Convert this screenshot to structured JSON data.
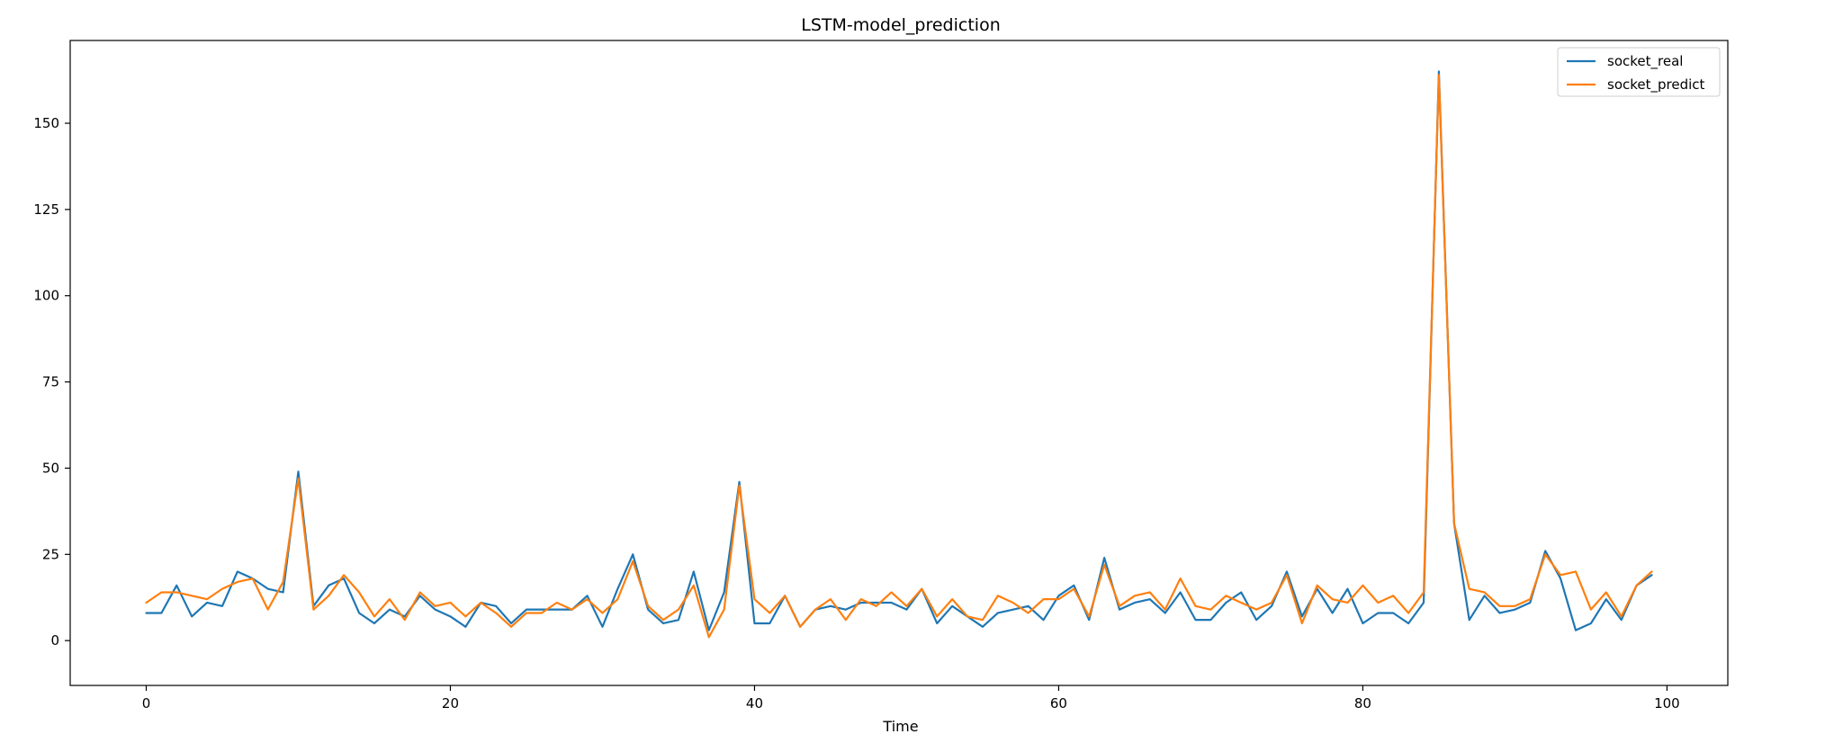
{
  "chart_data": {
    "type": "line",
    "title": "LSTM-model_prediction",
    "xlabel": "Time",
    "ylabel": "",
    "xlim": [
      -5,
      104
    ],
    "ylim": [
      -13,
      174
    ],
    "xticks": [
      0,
      20,
      40,
      60,
      80,
      100
    ],
    "yticks": [
      0,
      25,
      50,
      75,
      100,
      125,
      150
    ],
    "grid": false,
    "legend_position": "top-right",
    "x": [
      0,
      1,
      2,
      3,
      4,
      5,
      6,
      7,
      8,
      9,
      10,
      11,
      12,
      13,
      14,
      15,
      16,
      17,
      18,
      19,
      20,
      21,
      22,
      23,
      24,
      25,
      26,
      27,
      28,
      29,
      30,
      31,
      32,
      33,
      34,
      35,
      36,
      37,
      38,
      39,
      40,
      41,
      42,
      43,
      44,
      45,
      46,
      47,
      48,
      49,
      50,
      51,
      52,
      53,
      54,
      55,
      56,
      57,
      58,
      59,
      60,
      61,
      62,
      63,
      64,
      65,
      66,
      67,
      68,
      69,
      70,
      71,
      72,
      73,
      74,
      75,
      76,
      77,
      78,
      79,
      80,
      81,
      82,
      83,
      84,
      85,
      86,
      87,
      88,
      89,
      90,
      91,
      92,
      93,
      94,
      95,
      96,
      97,
      98,
      99
    ],
    "series": [
      {
        "name": "socket_real",
        "color": "#1f77b4",
        "values": [
          8,
          8,
          16,
          7,
          11,
          10,
          20,
          18,
          15,
          14,
          49,
          10,
          16,
          18,
          8,
          5,
          9,
          7,
          13,
          9,
          7,
          4,
          11,
          10,
          5,
          9,
          9,
          9,
          9,
          13,
          4,
          15,
          25,
          9,
          5,
          6,
          20,
          3,
          14,
          46,
          5,
          5,
          13,
          4,
          9,
          10,
          9,
          11,
          11,
          11,
          9,
          15,
          5,
          10,
          7,
          4,
          8,
          9,
          10,
          6,
          13,
          16,
          6,
          24,
          9,
          11,
          12,
          8,
          14,
          6,
          6,
          11,
          14,
          6,
          10,
          20,
          7,
          15,
          8,
          15,
          5,
          8,
          8,
          5,
          11,
          165,
          34,
          6,
          13,
          8,
          9,
          11,
          26,
          18,
          3,
          5,
          12,
          6,
          16,
          19
        ]
      },
      {
        "name": "socket_predict",
        "color": "#ff7f0e",
        "values": [
          11,
          14,
          14,
          13,
          12,
          15,
          17,
          18,
          9,
          17,
          47,
          9,
          13,
          19,
          14,
          7,
          12,
          6,
          14,
          10,
          11,
          7,
          11,
          8,
          4,
          8,
          8,
          11,
          9,
          12,
          8,
          12,
          23,
          10,
          6,
          9,
          16,
          1,
          9,
          45,
          12,
          8,
          13,
          4,
          9,
          12,
          6,
          12,
          10,
          14,
          10,
          15,
          7,
          12,
          7,
          6,
          13,
          11,
          8,
          12,
          12,
          15,
          7,
          22,
          10,
          13,
          14,
          9,
          18,
          10,
          9,
          13,
          11,
          9,
          11,
          19,
          5,
          16,
          12,
          11,
          16,
          11,
          13,
          8,
          14,
          164,
          34,
          15,
          14,
          10,
          10,
          12,
          25,
          19,
          20,
          9,
          14,
          7,
          16,
          20
        ]
      }
    ]
  }
}
